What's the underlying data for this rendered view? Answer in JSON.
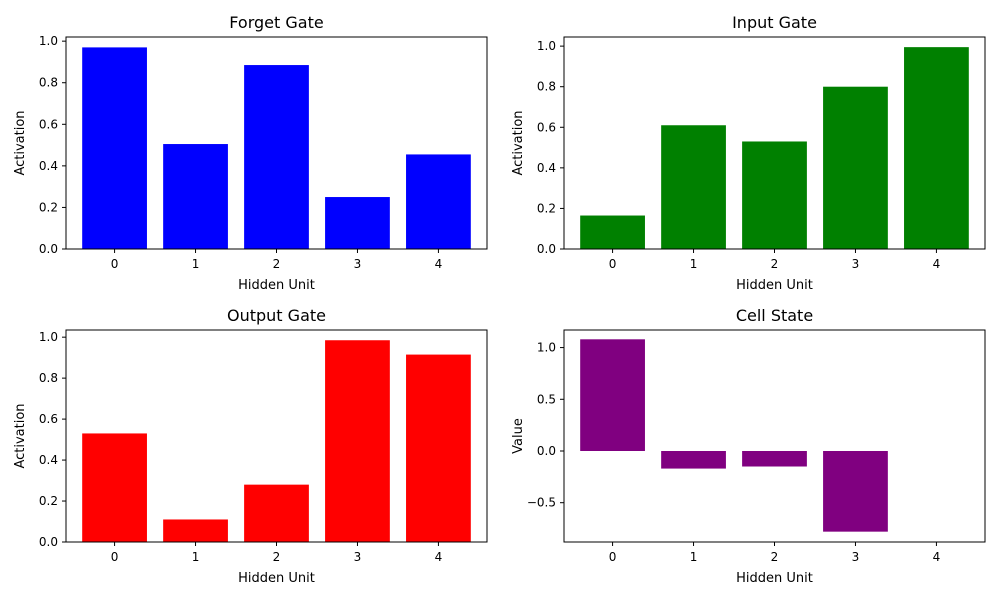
{
  "chart_data": [
    {
      "type": "bar",
      "title": "Forget Gate",
      "xlabel": "Hidden Unit",
      "ylabel": "Activation",
      "categories": [
        "0",
        "1",
        "2",
        "3",
        "4"
      ],
      "values": [
        0.97,
        0.505,
        0.885,
        0.25,
        0.455
      ],
      "color": "#0000ff",
      "ylim": [
        0,
        1.02
      ],
      "yticks": [
        0.0,
        0.2,
        0.4,
        0.6,
        0.8,
        1.0
      ],
      "ytick_labels": [
        "0.0",
        "0.2",
        "0.4",
        "0.6",
        "0.8",
        "1.0"
      ]
    },
    {
      "type": "bar",
      "title": "Input Gate",
      "xlabel": "Hidden Unit",
      "ylabel": "Activation",
      "categories": [
        "0",
        "1",
        "2",
        "3",
        "4"
      ],
      "values": [
        0.165,
        0.61,
        0.53,
        0.8,
        0.995
      ],
      "color": "#008000",
      "ylim": [
        0,
        1.045
      ],
      "yticks": [
        0.0,
        0.2,
        0.4,
        0.6,
        0.8,
        1.0
      ],
      "ytick_labels": [
        "0.0",
        "0.2",
        "0.4",
        "0.6",
        "0.8",
        "1.0"
      ]
    },
    {
      "type": "bar",
      "title": "Output Gate",
      "xlabel": "Hidden Unit",
      "ylabel": "Activation",
      "categories": [
        "0",
        "1",
        "2",
        "3",
        "4"
      ],
      "values": [
        0.53,
        0.11,
        0.28,
        0.985,
        0.915
      ],
      "color": "#ff0000",
      "ylim": [
        0,
        1.035
      ],
      "yticks": [
        0.0,
        0.2,
        0.4,
        0.6,
        0.8,
        1.0
      ],
      "ytick_labels": [
        "0.0",
        "0.2",
        "0.4",
        "0.6",
        "0.8",
        "1.0"
      ]
    },
    {
      "type": "bar",
      "title": "Cell State",
      "xlabel": "Hidden Unit",
      "ylabel": "Value",
      "categories": [
        "0",
        "1",
        "2",
        "3",
        "4"
      ],
      "values": [
        1.08,
        -0.17,
        -0.15,
        -0.78,
        0.0
      ],
      "color": "#800080",
      "ylim": [
        -0.88,
        1.17
      ],
      "yticks": [
        -0.5,
        0.0,
        0.5,
        1.0
      ],
      "ytick_labels": [
        "−0.5",
        "0.0",
        "0.5",
        "1.0"
      ]
    }
  ]
}
